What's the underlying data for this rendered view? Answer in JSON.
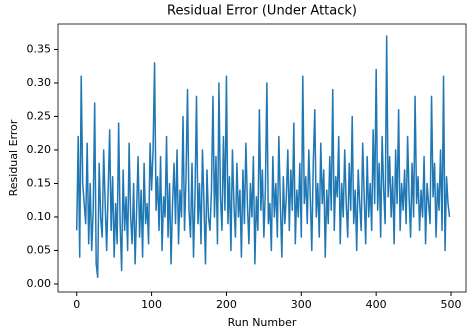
{
  "chart_data": {
    "type": "line",
    "title": "Residual Error (Under Attack)",
    "x_label": "Run Number",
    "y_label": "Residual Error",
    "x": [
      0,
      2,
      4,
      6,
      8,
      10,
      12,
      14,
      16,
      18,
      20,
      22,
      24,
      26,
      28,
      30,
      32,
      34,
      36,
      38,
      40,
      42,
      44,
      46,
      48,
      50,
      52,
      54,
      56,
      58,
      60,
      62,
      64,
      66,
      68,
      70,
      72,
      74,
      76,
      78,
      80,
      82,
      84,
      86,
      88,
      90,
      92,
      94,
      96,
      98,
      100,
      102,
      104,
      106,
      108,
      110,
      112,
      114,
      116,
      118,
      120,
      122,
      124,
      126,
      128,
      130,
      132,
      134,
      136,
      138,
      140,
      142,
      144,
      146,
      148,
      150,
      152,
      154,
      156,
      158,
      160,
      162,
      164,
      166,
      168,
      170,
      172,
      174,
      176,
      178,
      180,
      182,
      184,
      186,
      188,
      190,
      192,
      194,
      196,
      198,
      200,
      202,
      204,
      206,
      208,
      210,
      212,
      214,
      216,
      218,
      220,
      222,
      224,
      226,
      228,
      230,
      232,
      234,
      236,
      238,
      240,
      242,
      244,
      246,
      248,
      250,
      252,
      254,
      256,
      258,
      260,
      262,
      264,
      266,
      268,
      270,
      272,
      274,
      276,
      278,
      280,
      282,
      284,
      286,
      288,
      290,
      292,
      294,
      296,
      298,
      300,
      302,
      304,
      306,
      308,
      310,
      312,
      314,
      316,
      318,
      320,
      322,
      324,
      326,
      328,
      330,
      332,
      334,
      336,
      338,
      340,
      342,
      344,
      346,
      348,
      350,
      352,
      354,
      356,
      358,
      360,
      362,
      364,
      366,
      368,
      370,
      372,
      374,
      376,
      378,
      380,
      382,
      384,
      386,
      388,
      390,
      392,
      394,
      396,
      398,
      400,
      402,
      404,
      406,
      408,
      410,
      412,
      414,
      416,
      418,
      420,
      422,
      424,
      426,
      428,
      430,
      432,
      434,
      436,
      438,
      440,
      442,
      444,
      446,
      448,
      450,
      452,
      454,
      456,
      458,
      460,
      462,
      464,
      466,
      468,
      470,
      472,
      474,
      476,
      478,
      480,
      482,
      484,
      486,
      488,
      490,
      492,
      494,
      496,
      498
    ],
    "series": [
      {
        "color": "#1f77b4",
        "values": [
          0.08,
          0.22,
          0.04,
          0.31,
          0.15,
          0.12,
          0.09,
          0.21,
          0.06,
          0.15,
          0.05,
          0.11,
          0.27,
          0.03,
          0.01,
          0.18,
          0.1,
          0.07,
          0.2,
          0.12,
          0.05,
          0.14,
          0.23,
          0.08,
          0.16,
          0.04,
          0.12,
          0.06,
          0.24,
          0.09,
          0.02,
          0.17,
          0.08,
          0.13,
          0.05,
          0.21,
          0.1,
          0.06,
          0.15,
          0.03,
          0.11,
          0.19,
          0.07,
          0.14,
          0.04,
          0.18,
          0.09,
          0.12,
          0.06,
          0.21,
          0.14,
          0.2,
          0.33,
          0.11,
          0.16,
          0.08,
          0.19,
          0.05,
          0.13,
          0.1,
          0.22,
          0.07,
          0.15,
          0.03,
          0.12,
          0.18,
          0.09,
          0.2,
          0.06,
          0.14,
          0.1,
          0.25,
          0.08,
          0.16,
          0.29,
          0.11,
          0.07,
          0.18,
          0.04,
          0.13,
          0.28,
          0.09,
          0.15,
          0.06,
          0.2,
          0.12,
          0.03,
          0.17,
          0.1,
          0.08,
          0.14,
          0.28,
          0.1,
          0.19,
          0.06,
          0.3,
          0.13,
          0.08,
          0.22,
          0.11,
          0.31,
          0.09,
          0.16,
          0.05,
          0.2,
          0.12,
          0.07,
          0.18,
          0.1,
          0.14,
          0.04,
          0.17,
          0.09,
          0.21,
          0.12,
          0.06,
          0.15,
          0.1,
          0.19,
          0.03,
          0.13,
          0.08,
          0.26,
          0.11,
          0.17,
          0.07,
          0.14,
          0.3,
          0.09,
          0.12,
          0.05,
          0.19,
          0.1,
          0.15,
          0.07,
          0.22,
          0.12,
          0.04,
          0.16,
          0.09,
          0.13,
          0.2,
          0.08,
          0.17,
          0.11,
          0.24,
          0.06,
          0.14,
          0.1,
          0.18,
          0.07,
          0.31,
          0.12,
          0.16,
          0.09,
          0.2,
          0.13,
          0.05,
          0.18,
          0.26,
          0.1,
          0.15,
          0.07,
          0.21,
          0.12,
          0.17,
          0.04,
          0.14,
          0.09,
          0.19,
          0.11,
          0.29,
          0.08,
          0.16,
          0.13,
          0.22,
          0.06,
          0.15,
          0.1,
          0.2,
          0.12,
          0.07,
          0.18,
          0.11,
          0.25,
          0.09,
          0.14,
          0.05,
          0.17,
          0.12,
          0.08,
          0.21,
          0.13,
          0.06,
          0.19,
          0.1,
          0.15,
          0.08,
          0.23,
          0.12,
          0.32,
          0.11,
          0.18,
          0.07,
          0.22,
          0.14,
          0.09,
          0.37,
          0.13,
          0.19,
          0.1,
          0.16,
          0.06,
          0.2,
          0.12,
          0.26,
          0.08,
          0.15,
          0.11,
          0.17,
          0.09,
          0.22,
          0.13,
          0.07,
          0.18,
          0.1,
          0.28,
          0.12,
          0.16,
          0.08,
          0.14,
          0.1,
          0.19,
          0.06,
          0.15,
          0.12,
          0.09,
          0.28,
          0.13,
          0.18,
          0.07,
          0.15,
          0.11,
          0.2,
          0.08,
          0.31,
          0.05,
          0.16,
          0.12,
          0.1
        ]
      }
    ],
    "xlim": [
      -25,
      520
    ],
    "xticks": [
      0,
      100,
      200,
      300,
      400,
      500
    ],
    "ylim": [
      -0.012,
      0.388
    ],
    "yticks": [
      {
        "value": 0,
        "label": "0.00"
      },
      0.05,
      {
        "value": 0.1,
        "label": "0.10"
      },
      0.15,
      {
        "value": 0.2,
        "label": "0.20"
      },
      0.25,
      {
        "value": 0.3,
        "label": "0.30"
      },
      0.35
    ]
  }
}
